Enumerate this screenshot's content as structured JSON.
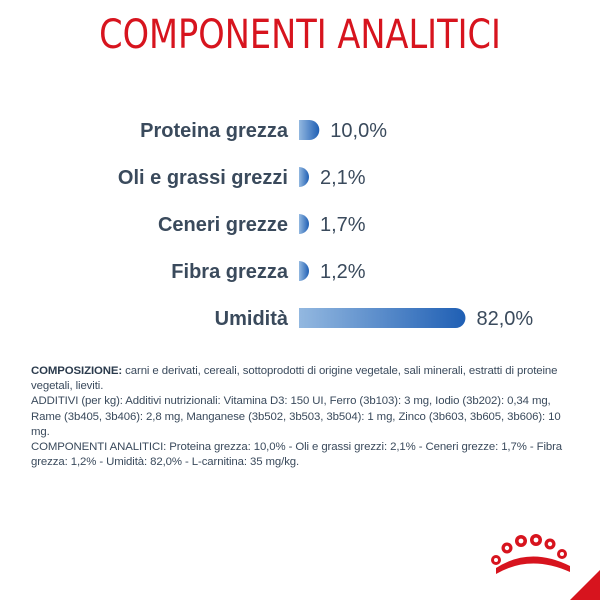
{
  "header": {
    "title": "COMPONENTI ANALITICI"
  },
  "chart_data": {
    "type": "bar",
    "orientation": "horizontal",
    "categories": [
      "Proteina grezza",
      "Oli e grassi grezzi",
      "Ceneri grezze",
      "Fibra grezza",
      "Umidità"
    ],
    "values": [
      10.0,
      2.1,
      1.7,
      1.2,
      82.0
    ],
    "value_labels": [
      "10,0%",
      "2,1%",
      "1,7%",
      "1,2%",
      "82,0%"
    ],
    "xlim": [
      0,
      100
    ],
    "grid": false,
    "bar_color_start": "#93b8e0",
    "bar_color_end": "#1f5fb4"
  },
  "composition": {
    "heading": "COMPOSIZIONE:",
    "text": "carni e derivati, cereali, sottoprodotti di origine vegetale, sali minerali, estratti di proteine vegetali, lieviti.",
    "additives": "ADDITIVI (per kg): Additivi nutrizionali: Vitamina D3: 150 UI, Ferro (3b103): 3 mg, Iodio (3b202): 0,34 mg, Rame (3b405, 3b406): 2,8 mg, Manganese (3b502, 3b503, 3b504): 1 mg, Zinco (3b603, 3b605, 3b606): 10 mg.",
    "analytical": "COMPONENTI ANALITICI: Proteina grezza: 10,0% - Oli e grassi grezzi: 2,1% - Ceneri grezze: 1,7% - Fibra grezza: 1,2% - Umidità: 82,0% - L-carnitina: 35 mg/kg."
  },
  "colors": {
    "title": "#d7141e",
    "label": "#3a4a5c",
    "logo": "#d7141e"
  },
  "icons": {
    "brand_logo": "crown-logo"
  }
}
